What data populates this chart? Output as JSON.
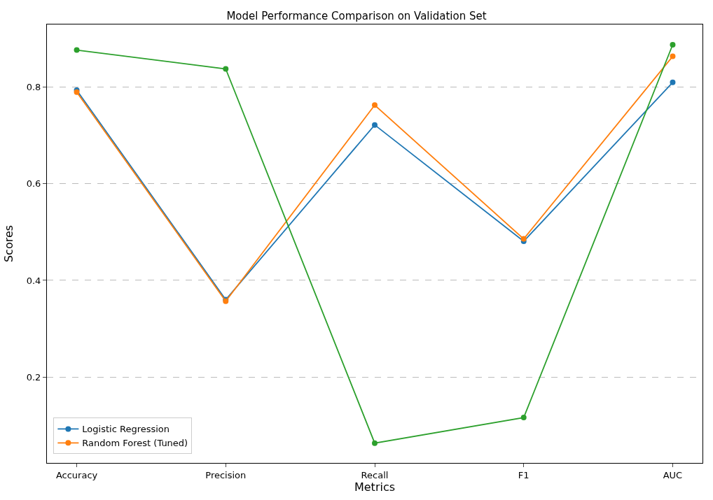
{
  "chart_data": {
    "type": "line",
    "title": "Model Performance Comparison on Validation Set",
    "xlabel": "Metrics",
    "ylabel": "Scores",
    "categories": [
      "Accuracy",
      "Precision",
      "Recall",
      "F1",
      "AUC"
    ],
    "series": [
      {
        "name": "Logistic Regression",
        "color": "#1f77b4",
        "values": [
          0.794,
          0.36,
          0.722,
          0.481,
          0.81
        ]
      },
      {
        "name": "Random Forest (Tuned)",
        "color": "#ff7f0e",
        "values": [
          0.79,
          0.357,
          0.763,
          0.486,
          0.864
        ]
      },
      {
        "color": "#2ca02c",
        "values": [
          0.877,
          0.838,
          0.063,
          0.116,
          0.888
        ]
      }
    ],
    "ylim": [
      0.022,
      0.93
    ],
    "yticks": [
      0.2,
      0.4,
      0.6,
      0.8
    ],
    "grid": "y",
    "legend": "bottom left",
    "marker": "circle",
    "line_style": "solid"
  }
}
